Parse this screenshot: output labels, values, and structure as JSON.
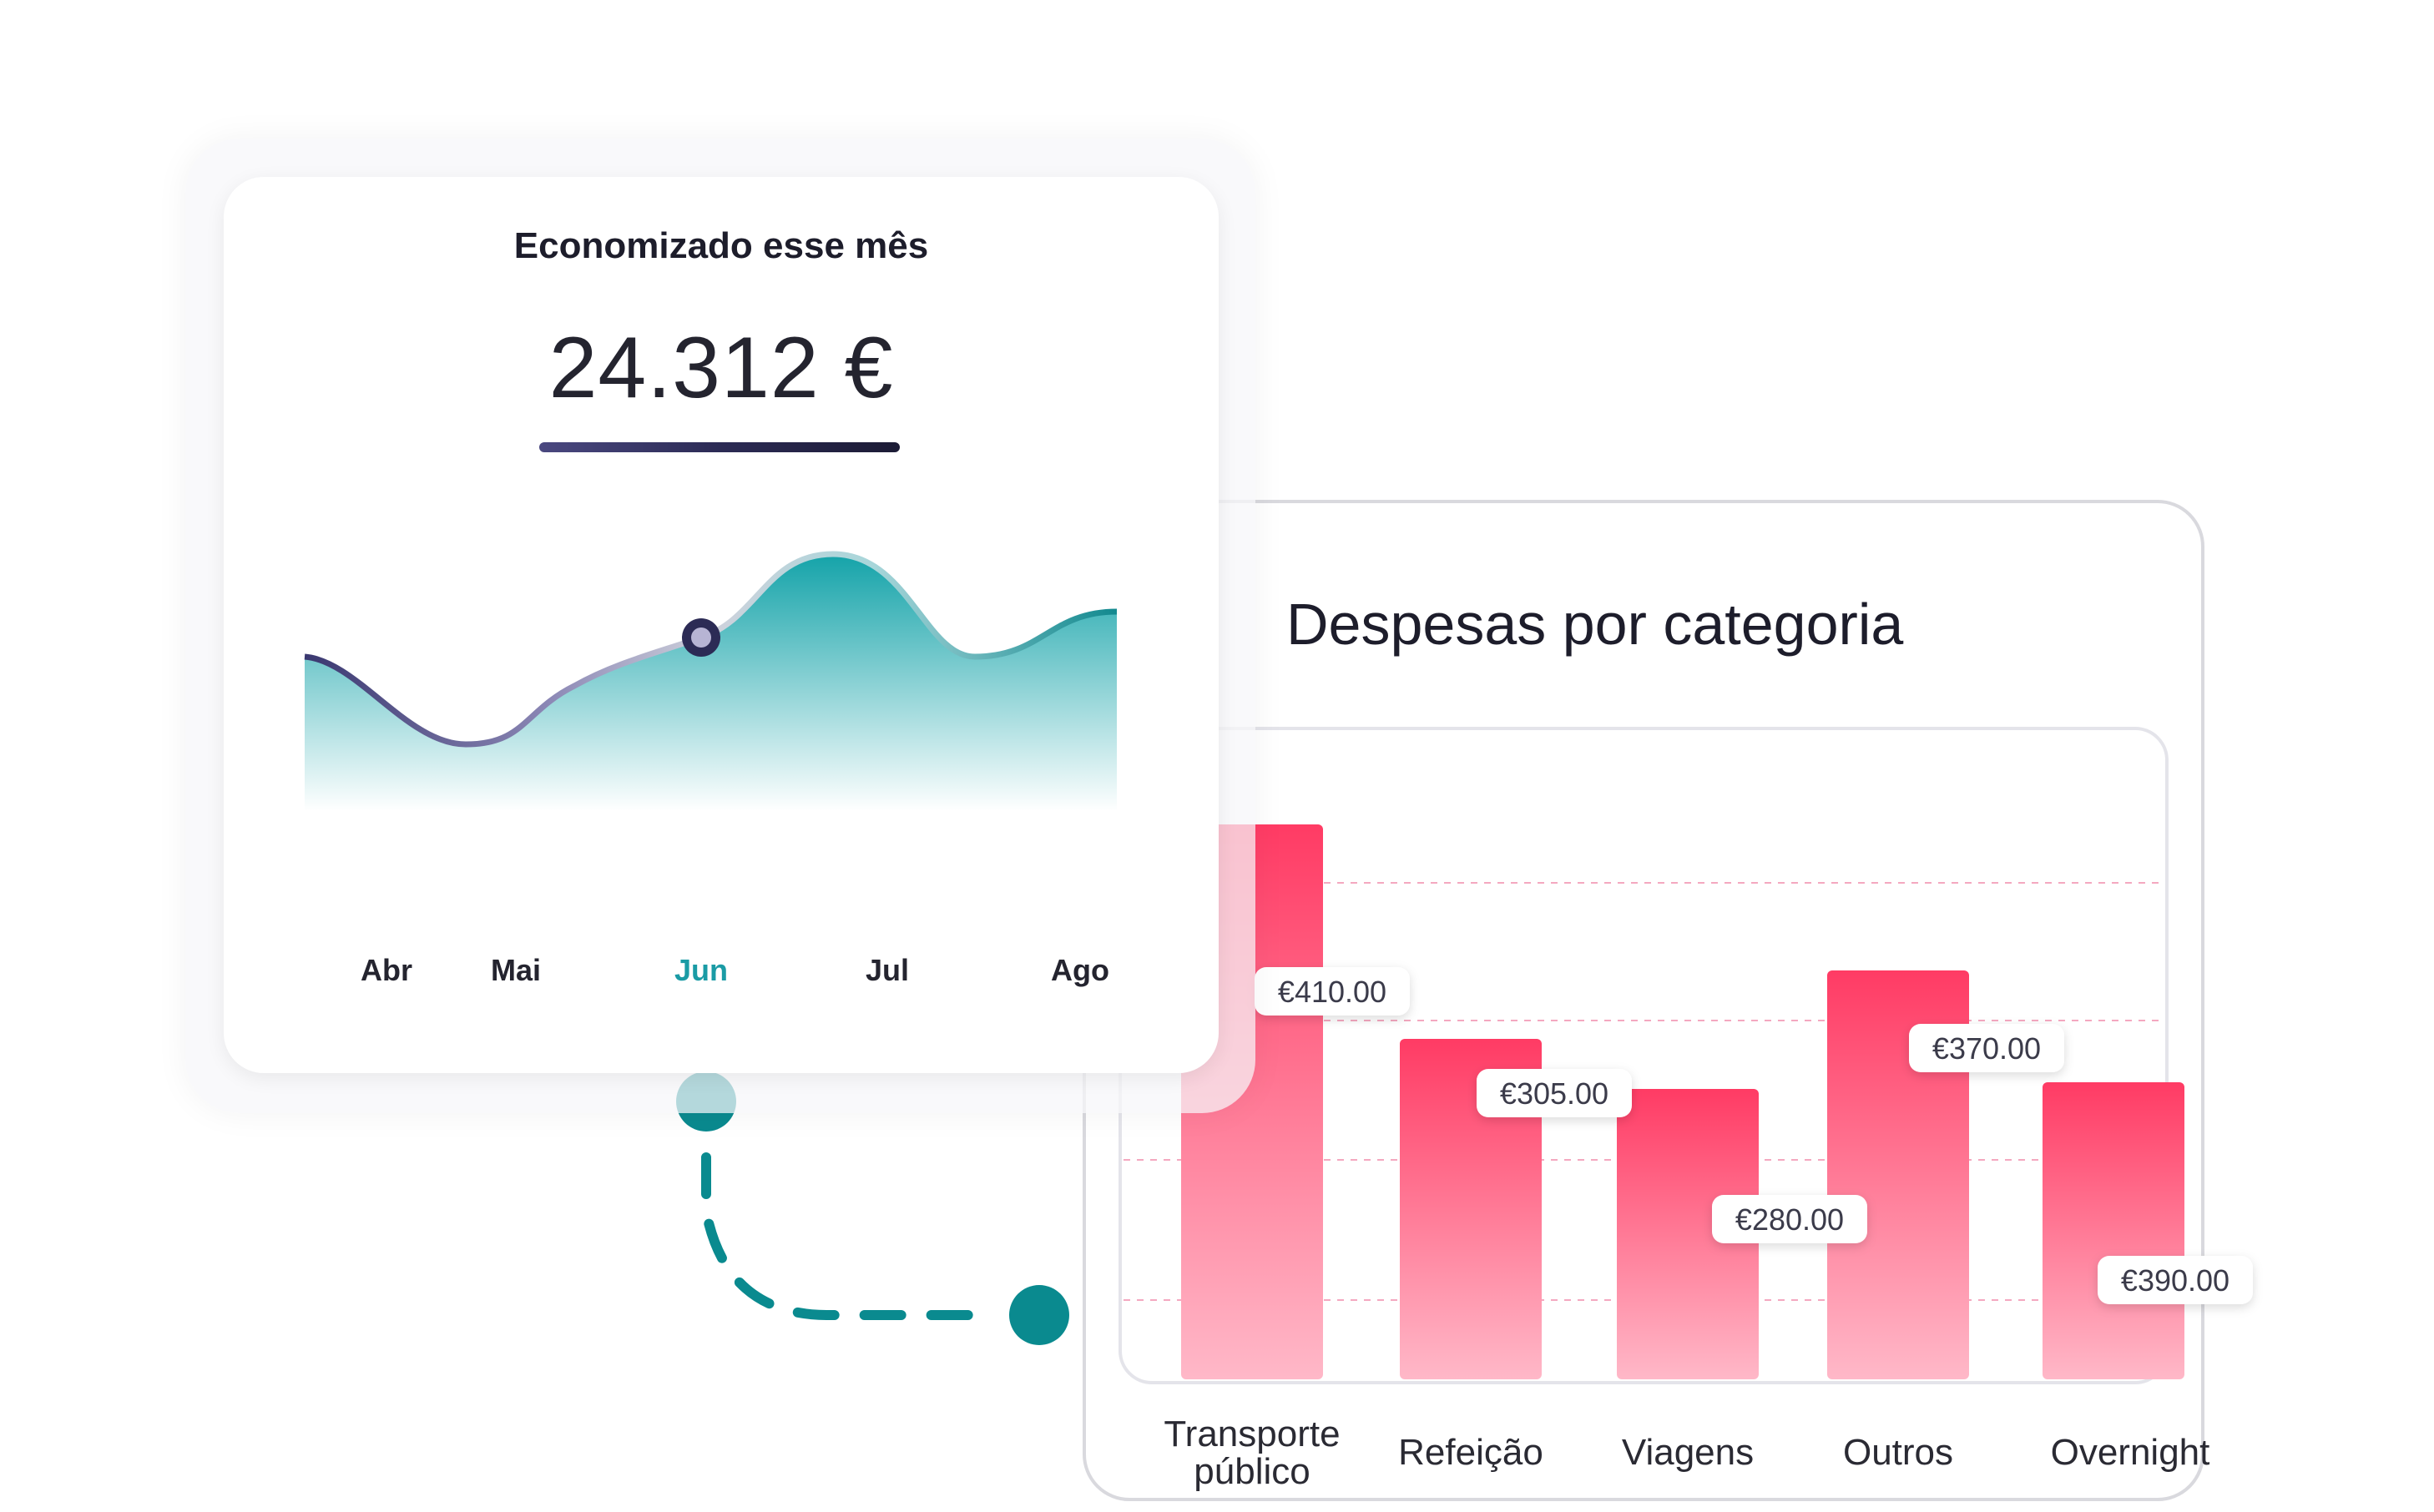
{
  "colors": {
    "teal": "#0a8a8f",
    "bar_top": "#ff3b64",
    "bar_bottom": "#ffb8c8",
    "navy": "#2c2b55",
    "area_top": "#14a3a9"
  },
  "savings": {
    "title": "Economizado esse mês",
    "amount": "24.312 €",
    "selected_month": "Jun"
  },
  "expenses": {
    "title": "Despesas por categoria"
  },
  "chart_data": [
    {
      "type": "area",
      "title": "Economizado esse mês",
      "categories": [
        "Abr",
        "Mai",
        "Jun",
        "Jul",
        "Ago"
      ],
      "series": [
        {
          "values": [
            50,
            10,
            56,
            98,
            70
          ]
        }
      ],
      "ylim": [
        0,
        110
      ],
      "highlight": "Jun",
      "grid": false
    },
    {
      "type": "bar",
      "title": "Despesas por categoria",
      "categories": [
        "Transporte público",
        "Refeição",
        "Viagens",
        "Outros",
        "Overnight"
      ],
      "values": [
        410,
        305,
        280,
        370,
        390
      ],
      "data_labels": [
        "€410.00",
        "€305.00",
        "€280.00",
        "€370.00",
        "€390.00"
      ],
      "grid": true
    }
  ]
}
